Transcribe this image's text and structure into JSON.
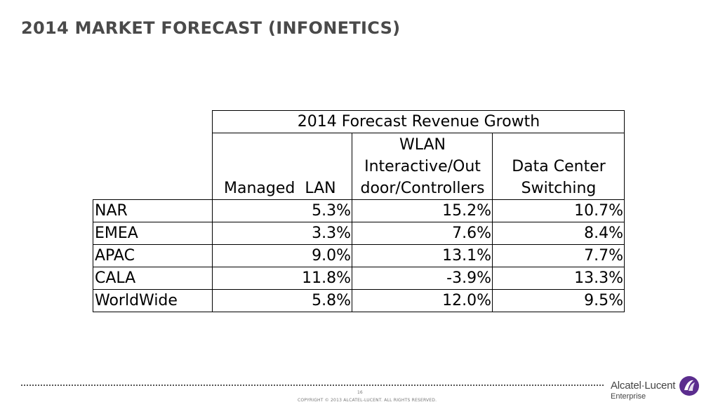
{
  "slide": {
    "title": "2014 MARKET FORECAST (INFONETICS)",
    "page_number": "16",
    "copyright": "COPYRIGHT © 2013 ALCATEL-LUCENT.   ALL RIGHTS RESERVED."
  },
  "table": {
    "group_header": "2014 Forecast Revenue Growth",
    "columns": [
      {
        "label": "Managed  LAN"
      },
      {
        "label_lines": [
          "WLAN",
          "Interactive/Out",
          "door/Controllers"
        ]
      },
      {
        "label_lines": [
          "Data Center",
          "Switching"
        ]
      }
    ],
    "rows": [
      {
        "region": "NAR",
        "values": [
          "5.3%",
          "15.2%",
          "10.7%"
        ]
      },
      {
        "region": "EMEA",
        "values": [
          "3.3%",
          "7.6%",
          "8.4%"
        ]
      },
      {
        "region": "APAC",
        "values": [
          "9.0%",
          "13.1%",
          "7.7%"
        ]
      },
      {
        "region": "CALA",
        "values": [
          "11.8%",
          "-3.9%",
          "13.3%"
        ]
      },
      {
        "region": "WorldWide",
        "values": [
          "5.8%",
          "12.0%",
          "9.5%"
        ]
      }
    ]
  },
  "logo": {
    "name": "Alcatel·Lucent",
    "subtitle": "Enterprise",
    "icon": "alcatel-lucent-swirl-icon",
    "color": "#5b2d8e"
  }
}
